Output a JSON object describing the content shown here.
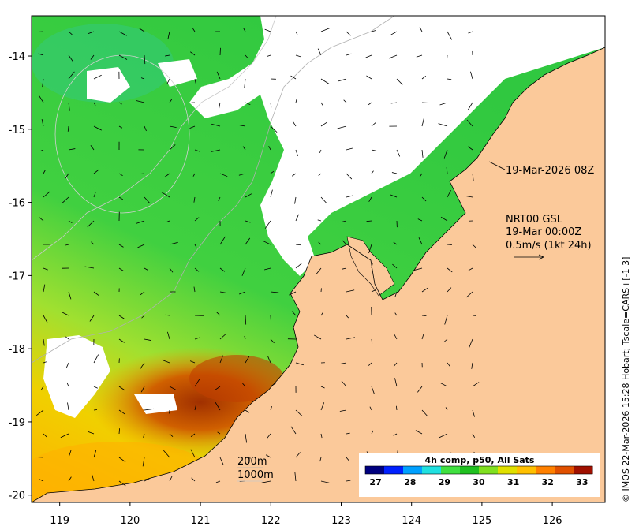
{
  "map": {
    "x_ticks": [
      {
        "value": 119,
        "label": "119"
      },
      {
        "value": 120,
        "label": "120"
      },
      {
        "value": 121,
        "label": "121"
      },
      {
        "value": 122,
        "label": "122"
      },
      {
        "value": 123,
        "label": "123"
      },
      {
        "value": 124,
        "label": "124"
      },
      {
        "value": 125,
        "label": "125"
      },
      {
        "value": 126,
        "label": "126"
      }
    ],
    "y_ticks": [
      {
        "value": -14,
        "label": "-14"
      },
      {
        "value": -15,
        "label": "-15"
      },
      {
        "value": -16,
        "label": "-16"
      },
      {
        "value": -17,
        "label": "-17"
      },
      {
        "value": -18,
        "label": "-18"
      },
      {
        "value": -19,
        "label": "-19"
      },
      {
        "value": -20,
        "label": "-20"
      }
    ],
    "lon_range": [
      118.6,
      126.75
    ],
    "lat_range": [
      -20.1,
      -13.45
    ],
    "land_color": "#fbc99a",
    "cloud_color": "#ffffff"
  },
  "annotations": {
    "datetime": "19-Mar-2026 08Z",
    "current_source": "NRT00 GSL",
    "current_time": "19-Mar 00:00Z",
    "vector_scale": "0.5m/s (1kt 24h)",
    "isobath_200": "200m",
    "isobath_1000": "1000m"
  },
  "colorbar": {
    "title": "4h comp, p50, All Sats",
    "labels": [
      "27",
      "28",
      "29",
      "30",
      "31",
      "32",
      "33"
    ],
    "range": [
      26.7,
      33.3
    ],
    "colors": [
      "#00007f",
      "#0020ff",
      "#00a0ff",
      "#20e0e0",
      "#40e040",
      "#20c020",
      "#80e020",
      "#e0e000",
      "#ffc000",
      "#ff8000",
      "#e05000",
      "#a01000"
    ]
  },
  "credit": "© IMOS 22-Mar-2026 15:28 Hobart; Tscale=CARS+[-1 3]"
}
